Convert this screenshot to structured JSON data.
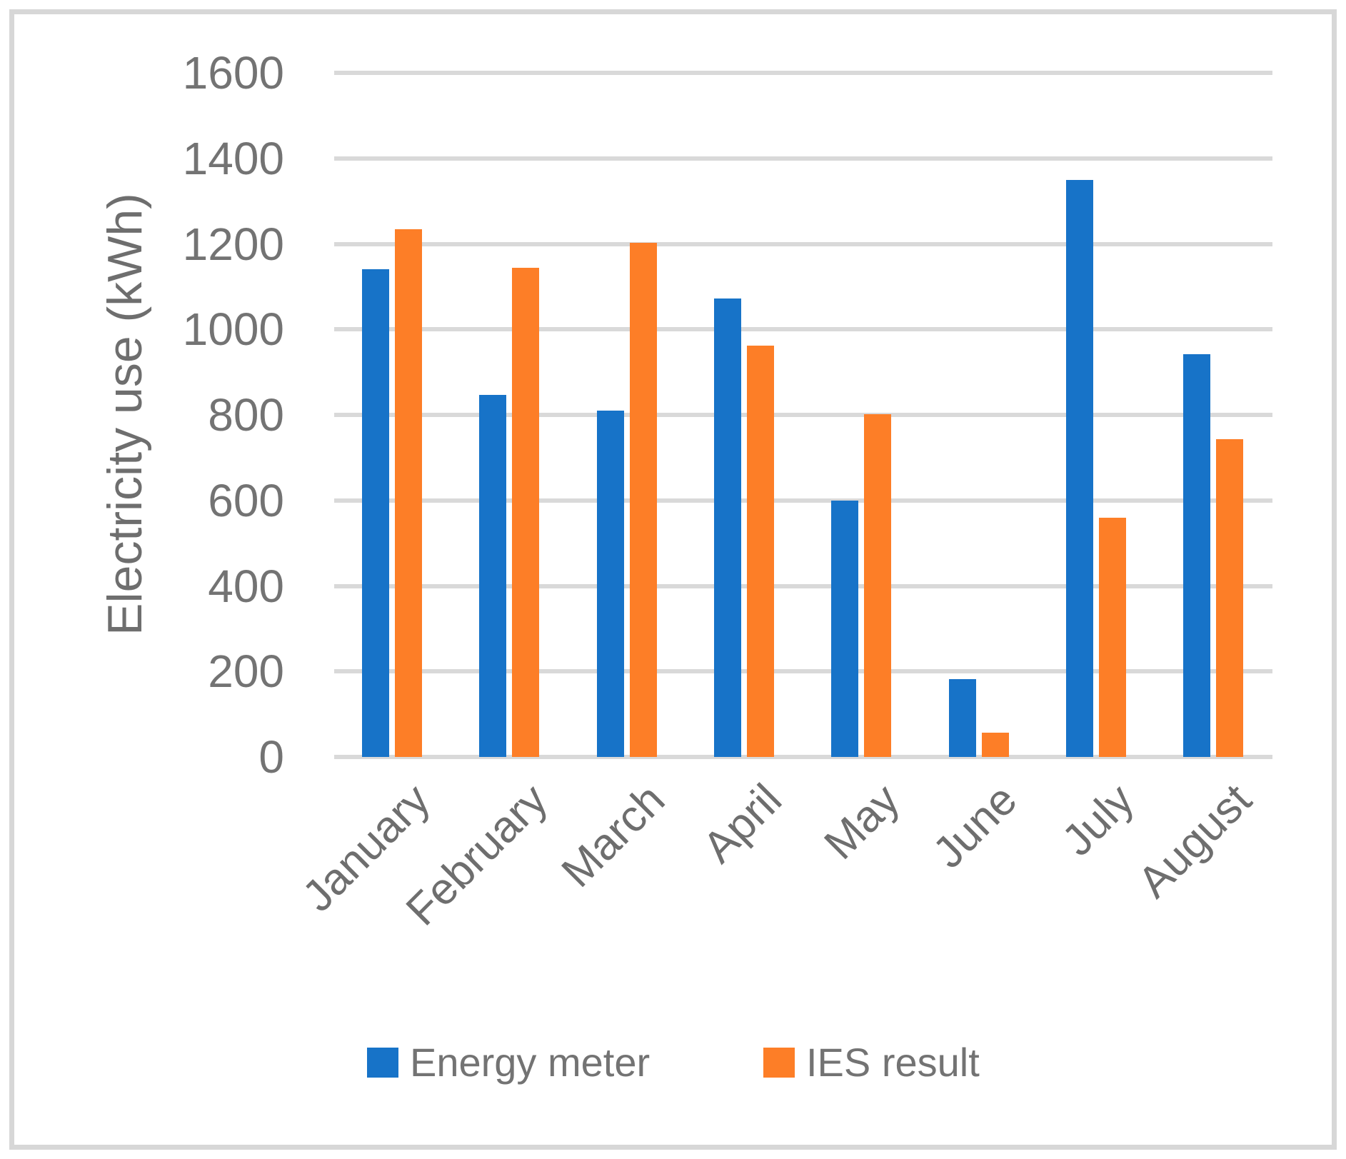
{
  "chart_data": {
    "type": "bar",
    "title": "",
    "ylabel": "Electricity use (kWh)",
    "xlabel": "",
    "ylim": [
      0,
      1600
    ],
    "ytick_step": 200,
    "grid": true,
    "legend_position": "bottom",
    "categories": [
      "January",
      "February",
      "March",
      "April",
      "May",
      "June",
      "July",
      "August"
    ],
    "series": [
      {
        "name": "Energy meter",
        "color": "#1773c8",
        "values": [
          1140,
          847,
          810,
          1073,
          600,
          182,
          1350,
          942
        ]
      },
      {
        "name": "IES result",
        "color": "#fd7e27",
        "values": [
          1235,
          1144,
          1203,
          962,
          802,
          57,
          560,
          743
        ]
      }
    ],
    "colors": {
      "gridline": "#d9d9d9",
      "axis_text": "#737373",
      "frame_border": "#d7d7d7"
    }
  }
}
